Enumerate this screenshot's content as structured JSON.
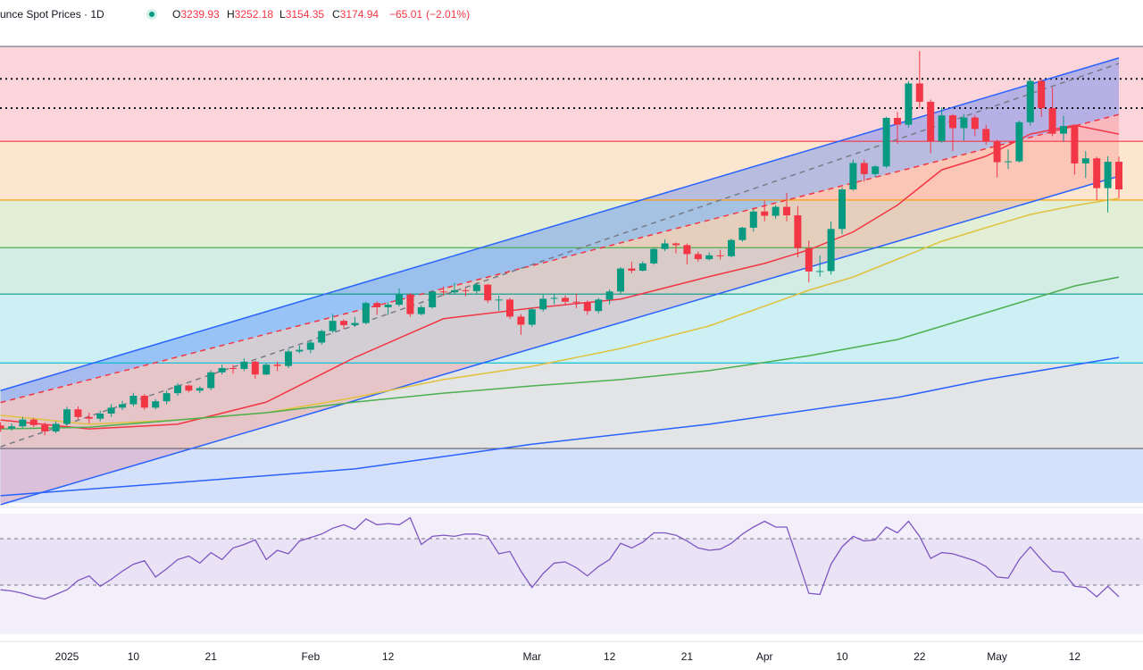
{
  "header": {
    "title": "unce Spot Prices · 1D",
    "ohlc_letters": [
      "O",
      "H",
      "L",
      "C"
    ],
    "change": {
      "value": -65.01,
      "label": "−65.01"
    },
    "change_pct": {
      "value": -2.01,
      "label": "(−2.01%)"
    },
    "color": "#f23645"
  },
  "chart_data": {
    "type": "candlestick",
    "categories": [
      null,
      null,
      null,
      null,
      null,
      null,
      "2025",
      null,
      null,
      null,
      null,
      null,
      "10",
      null,
      null,
      null,
      null,
      null,
      null,
      "21",
      null,
      null,
      null,
      null,
      null,
      null,
      null,
      null,
      "Feb",
      null,
      null,
      null,
      null,
      null,
      null,
      "12",
      null,
      null,
      null,
      null,
      null,
      null,
      null,
      null,
      null,
      null,
      null,
      null,
      "Mar",
      null,
      null,
      null,
      null,
      null,
      null,
      "12",
      null,
      null,
      null,
      null,
      null,
      null,
      "21",
      null,
      null,
      null,
      null,
      null,
      null,
      "Apr",
      null,
      null,
      null,
      null,
      null,
      null,
      "10",
      null,
      null,
      null,
      null,
      null,
      null,
      "22",
      null,
      null,
      null,
      null,
      null,
      null,
      "May",
      null,
      null,
      null,
      null,
      null,
      null,
      "12",
      null,
      null,
      null,
      null
    ],
    "open": [
      2620,
      2613,
      2618,
      2634,
      2621,
      2606,
      2624,
      2658,
      2640,
      2636,
      2648,
      2662,
      2670,
      2690,
      2662,
      2677,
      2696,
      2714,
      2702,
      2708,
      2745,
      2755,
      2753,
      2770,
      2740,
      2763,
      2760,
      2794,
      2798,
      2815,
      2842,
      2866,
      2856,
      2861,
      2908,
      2898,
      2904,
      2928,
      2882,
      2898,
      2935,
      2933,
      2938,
      2936,
      2951,
      2914,
      2916,
      2876,
      2857,
      2893,
      2918,
      2920,
      2911,
      2910,
      2889,
      2916,
      2935,
      2989,
      2984,
      3001,
      3035,
      3048,
      3044,
      3023,
      3011,
      3020,
      3018,
      3056,
      3085,
      3123,
      3113,
      3134,
      3114,
      3037,
      2982,
      2983,
      3082,
      3175,
      3237,
      3211,
      3229,
      3343,
      3327,
      3424,
      3381,
      3288,
      3349,
      3319,
      3344,
      3317,
      3288,
      3239,
      3241,
      3333,
      3430,
      3366,
      3306,
      3324,
      3236,
      3248,
      3178,
      3239.93
    ],
    "high": [
      2628,
      2625,
      2640,
      2638,
      2627,
      2630,
      2664,
      2665,
      2650,
      2655,
      2670,
      2678,
      2697,
      2694,
      2682,
      2702,
      2720,
      2716,
      2712,
      2750,
      2763,
      2762,
      2778,
      2772,
      2766,
      2770,
      2800,
      2808,
      2820,
      2845,
      2882,
      2870,
      2875,
      2911,
      2912,
      2910,
      2942,
      2931,
      2903,
      2938,
      2947,
      2955,
      2944,
      2956,
      2953,
      2925,
      2920,
      2882,
      2896,
      2928,
      2930,
      2926,
      2930,
      2914,
      2920,
      2940,
      2992,
      3005,
      3006,
      3038,
      3057,
      3050,
      3048,
      3029,
      3027,
      3033,
      3059,
      3087,
      3128,
      3149,
      3138,
      3167,
      3136,
      3055,
      3020,
      3100,
      3180,
      3245,
      3245,
      3232,
      3346,
      3357,
      3430,
      3500,
      3386,
      3368,
      3352,
      3352,
      3350,
      3327,
      3292,
      3269,
      3337,
      3436,
      3435,
      3415,
      3348,
      3326,
      3265,
      3252,
      3253,
      3252.18
    ],
    "low": [
      2605,
      2608,
      2614,
      2616,
      2597,
      2602,
      2620,
      2634,
      2625,
      2630,
      2640,
      2656,
      2665,
      2657,
      2658,
      2670,
      2690,
      2698,
      2696,
      2703,
      2740,
      2742,
      2748,
      2730,
      2738,
      2748,
      2755,
      2790,
      2790,
      2810,
      2838,
      2847,
      2852,
      2858,
      2880,
      2880,
      2900,
      2875,
      2879,
      2895,
      2925,
      2929,
      2924,
      2930,
      2908,
      2890,
      2870,
      2833,
      2852,
      2888,
      2905,
      2902,
      2896,
      2880,
      2884,
      2905,
      2930,
      2978,
      2982,
      2998,
      3030,
      3025,
      2999,
      3005,
      3008,
      3010,
      3015,
      3052,
      3076,
      3100,
      3106,
      3100,
      3015,
      2957,
      2970,
      2975,
      3070,
      3172,
      3193,
      3204,
      3225,
      3282,
      3320,
      3366,
      3260,
      3285,
      3265,
      3290,
      3300,
      3280,
      3203,
      3223,
      3238,
      3325,
      3345,
      3300,
      3288,
      3210,
      3202,
      3150,
      3121,
      3154.35
    ],
    "close": [
      2613,
      2618,
      2634,
      2621,
      2606,
      2624,
      2658,
      2640,
      2636,
      2648,
      2662,
      2670,
      2690,
      2662,
      2677,
      2696,
      2714,
      2702,
      2708,
      2745,
      2755,
      2753,
      2770,
      2740,
      2763,
      2760,
      2794,
      2798,
      2815,
      2842,
      2866,
      2856,
      2861,
      2908,
      2898,
      2904,
      2928,
      2882,
      2898,
      2935,
      2933,
      2938,
      2936,
      2951,
      2914,
      2916,
      2876,
      2857,
      2893,
      2918,
      2920,
      2911,
      2910,
      2889,
      2916,
      2935,
      2989,
      2984,
      3001,
      3035,
      3048,
      3044,
      3023,
      3011,
      3020,
      3018,
      3056,
      3085,
      3123,
      3113,
      3134,
      3114,
      3037,
      2982,
      2983,
      3082,
      3175,
      3237,
      3211,
      3229,
      3343,
      3327,
      3424,
      3381,
      3288,
      3349,
      3319,
      3344,
      3317,
      3288,
      3239,
      3241,
      3333,
      3430,
      3366,
      3306,
      3324,
      3236,
      3248,
      3178,
      3240,
      3174.94
    ],
    "up_color": "#089981",
    "down_color": "#f23645",
    "ylim": [
      2438,
      3511
    ],
    "levels": [
      {
        "value": 3511,
        "color": "#787b86",
        "style": "solid",
        "fill": "#fbd5d9"
      },
      {
        "value": 3435,
        "color": "#131722",
        "style": "dotted"
      },
      {
        "value": 3366,
        "color": "#131722",
        "style": "dotted"
      },
      {
        "value": 3288,
        "color": "#f23645",
        "style": "solid",
        "fill": "#fde6cf"
      },
      {
        "value": 3150,
        "color": "#ff9800",
        "style": "solid",
        "fill": "#e2efd6"
      },
      {
        "value": 3038,
        "color": "#4caf50",
        "style": "solid",
        "fill": "#d3ece4"
      },
      {
        "value": 2929,
        "color": "#089981",
        "style": "solid",
        "fill": "#ccf0f4"
      },
      {
        "value": 2767,
        "color": "#00bcd4",
        "style": "solid",
        "fill": "#e3e4e6"
      },
      {
        "value": 2566,
        "color": "#5d606b",
        "style": "solid",
        "fill": "#d5e0fa"
      }
    ],
    "channel": [
      {
        "color": "#2962ff",
        "style": "solid",
        "values": [
          2702,
          3484
        ],
        "fill": "rgba(41,98,255,0.32)"
      },
      {
        "color": "#f23645",
        "style": "dashed",
        "values": [
          2674,
          3351
        ],
        "fill": "rgba(242,54,69,0.18)"
      },
      {
        "color": "#2962ff",
        "style": "solid",
        "values": [
          2434,
          3206
        ]
      },
      {
        "color": "#787b86",
        "style": "dashed",
        "values": [
          2570,
          3471
        ]
      }
    ],
    "moving_averages": [
      {
        "color": "#f23645",
        "x": [
          0,
          8,
          16,
          24,
          32,
          40,
          48,
          56,
          64,
          69,
          73,
          77,
          81,
          85,
          89,
          93,
          97,
          101
        ],
        "values": [
          2633,
          2612,
          2623,
          2675,
          2780,
          2871,
          2896,
          2917,
          2970,
          3001,
          3033,
          3075,
          3138,
          3221,
          3253,
          3305,
          3326,
          3305
        ]
      },
      {
        "color": "#e0c240",
        "x": [
          0,
          8,
          16,
          24,
          32,
          40,
          48,
          56,
          64,
          73,
          77,
          81,
          85,
          89,
          93,
          97,
          101
        ],
        "values": [
          2644,
          2623,
          2633,
          2650,
          2686,
          2728,
          2759,
          2801,
          2854,
          2938,
          2969,
          3011,
          3053,
          3085,
          3116,
          3137,
          3154
        ]
      },
      {
        "color": "#4caf50",
        "x": [
          0,
          8,
          16,
          24,
          32,
          40,
          48,
          56,
          64,
          73,
          81,
          89,
          97,
          101
        ],
        "values": [
          2612,
          2616,
          2633,
          2650,
          2675,
          2696,
          2713,
          2728,
          2749,
          2784,
          2822,
          2885,
          2948,
          2969
        ]
      },
      {
        "color": "#2962ff",
        "x": [
          0,
          16,
          32,
          48,
          64,
          81,
          89,
          101
        ],
        "values": [
          2455,
          2486,
          2518,
          2576,
          2623,
          2686,
          2728,
          2780
        ]
      }
    ],
    "rsi": {
      "color": "#7e57c2",
      "ylim": [
        0,
        100
      ],
      "levels": [
        70,
        30
      ],
      "fill": "#f3effa",
      "band": "rgba(126,87,194,0.08)",
      "values": [
        26,
        25,
        23,
        20,
        18,
        22,
        26,
        34,
        38,
        29,
        35,
        42,
        48,
        51,
        37,
        44,
        52,
        55,
        49,
        58,
        52,
        62,
        65,
        69,
        52,
        60,
        57,
        68,
        71,
        74,
        79,
        82,
        78,
        87,
        82,
        83,
        82,
        88,
        65,
        72,
        73,
        72,
        74,
        74,
        72,
        57,
        59,
        42,
        28,
        40,
        49,
        50,
        45,
        38,
        46,
        52,
        66,
        62,
        67,
        75,
        75,
        73,
        68,
        62,
        60,
        61,
        66,
        74,
        80,
        85,
        80,
        80,
        52,
        23,
        22,
        48,
        63,
        72,
        68,
        69,
        80,
        75,
        85,
        72,
        53,
        58,
        57,
        54,
        51,
        46,
        37,
        36,
        52,
        63,
        52,
        42,
        41,
        29,
        28,
        20,
        29,
        20
      ]
    }
  }
}
